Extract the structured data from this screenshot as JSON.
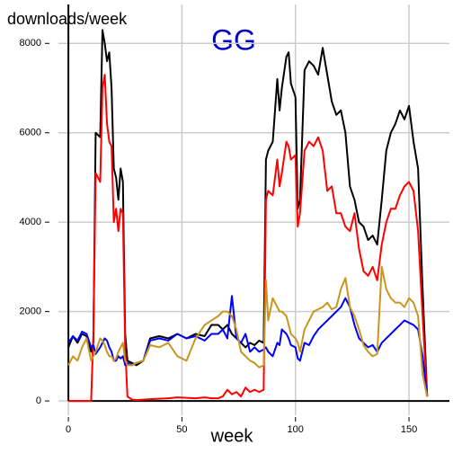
{
  "chart_data": {
    "type": "line",
    "title": "GG",
    "title_color": "#0000cc",
    "y_label": "downloads/week",
    "x_label": "week",
    "x": [
      0,
      2,
      4,
      6,
      8,
      10,
      11,
      12,
      14,
      15,
      16,
      17,
      18,
      19,
      20,
      21,
      22,
      23,
      24,
      25,
      26,
      28,
      30,
      33,
      36,
      40,
      44,
      48,
      52,
      56,
      60,
      63,
      66,
      68,
      70,
      72,
      74,
      76,
      78,
      80,
      82,
      84,
      86,
      87,
      88,
      90,
      92,
      93,
      94,
      96,
      97,
      98,
      100,
      101,
      102,
      104,
      106,
      108,
      110,
      112,
      114,
      116,
      118,
      120,
      122,
      124,
      126,
      128,
      130,
      132,
      134,
      136,
      138,
      140,
      142,
      144,
      146,
      148,
      150,
      152,
      154,
      156,
      158
    ],
    "series": [
      {
        "color": "#000000",
        "values": [
          1200,
          1450,
          1300,
          1500,
          1450,
          1100,
          1300,
          6000,
          5900,
          8300,
          8000,
          7600,
          7800,
          7000,
          5200,
          5000,
          4500,
          5200,
          4900,
          1500,
          900,
          850,
          800,
          900,
          1400,
          1450,
          1400,
          1500,
          1400,
          1500,
          1450,
          1700,
          1700,
          1600,
          1700,
          1500,
          1400,
          1300,
          1200,
          1300,
          1250,
          1350,
          1300,
          5400,
          5600,
          5800,
          7200,
          6500,
          7000,
          7700,
          7800,
          7100,
          6800,
          4300,
          4500,
          7400,
          7600,
          7500,
          7300,
          7900,
          7300,
          6700,
          6400,
          6500,
          6000,
          4800,
          4500,
          4000,
          3900,
          3600,
          3700,
          3500,
          4500,
          5600,
          6000,
          6200,
          6500,
          6300,
          6600,
          5800,
          5200,
          2500,
          100
        ]
      },
      {
        "color": "#ff0000",
        "values": [
          0,
          0,
          0,
          0,
          0,
          0,
          1500,
          5100,
          4900,
          7000,
          7300,
          6200,
          5800,
          5700,
          4000,
          4300,
          3800,
          4300,
          4200,
          1200,
          100,
          30,
          20,
          30,
          40,
          50,
          60,
          80,
          70,
          60,
          80,
          60,
          60,
          100,
          250,
          150,
          200,
          100,
          300,
          200,
          250,
          200,
          250,
          4500,
          4700,
          4600,
          5400,
          4800,
          5100,
          5800,
          5700,
          5400,
          5500,
          3900,
          4200,
          5600,
          5800,
          5700,
          5900,
          5600,
          4700,
          4800,
          4200,
          4200,
          3900,
          3800,
          4200,
          3400,
          2900,
          2800,
          3000,
          2700,
          3500,
          4000,
          4300,
          4300,
          4600,
          4800,
          4900,
          4700,
          3800,
          1900,
          100
        ]
      },
      {
        "color": "#0000ff",
        "values": [
          1300,
          1450,
          1350,
          1550,
          1500,
          1200,
          1250,
          1050,
          1200,
          1300,
          1400,
          1350,
          1200,
          1100,
          900,
          900,
          1000,
          950,
          1000,
          800,
          850,
          800,
          850,
          900,
          1350,
          1400,
          1350,
          1500,
          1400,
          1450,
          1350,
          1500,
          1500,
          1600,
          1400,
          2350,
          1400,
          1300,
          1500,
          1100,
          1200,
          1100,
          1150,
          1200,
          1100,
          1000,
          1300,
          1250,
          1600,
          1500,
          1400,
          1250,
          1200,
          950,
          900,
          1300,
          1250,
          1450,
          1600,
          1700,
          1800,
          1900,
          2000,
          2100,
          2300,
          2100,
          1700,
          1400,
          1300,
          1200,
          1250,
          1100,
          1300,
          1400,
          1500,
          1600,
          1700,
          1800,
          1750,
          1700,
          1600,
          1000,
          100
        ]
      },
      {
        "color": "#c8961e",
        "values": [
          800,
          1000,
          900,
          1200,
          1400,
          900,
          1000,
          1100,
          1400,
          1350,
          1250,
          1100,
          1000,
          1000,
          900,
          950,
          1100,
          1200,
          1300,
          900,
          800,
          800,
          850,
          900,
          1250,
          1200,
          1300,
          1000,
          900,
          1400,
          1700,
          1800,
          1900,
          2000,
          2000,
          1900,
          1600,
          1100,
          1000,
          900,
          850,
          750,
          800,
          2700,
          1800,
          2300,
          2100,
          2000,
          2000,
          1900,
          1700,
          1500,
          1400,
          1300,
          1100,
          1600,
          1800,
          2000,
          2050,
          2100,
          2200,
          2050,
          2100,
          2500,
          2750,
          2100,
          1900,
          1600,
          1250,
          1100,
          1000,
          1050,
          3000,
          2500,
          2300,
          2200,
          2200,
          2100,
          2300,
          2200,
          1900,
          600,
          100
        ]
      }
    ],
    "xlim": [
      -4.4,
      167.8
    ],
    "ylim": [
      -320,
      8870
    ],
    "xticks": [
      0,
      50,
      100,
      150
    ],
    "yticks": [
      0,
      2000,
      4000,
      6000,
      8000
    ],
    "grid": true
  }
}
